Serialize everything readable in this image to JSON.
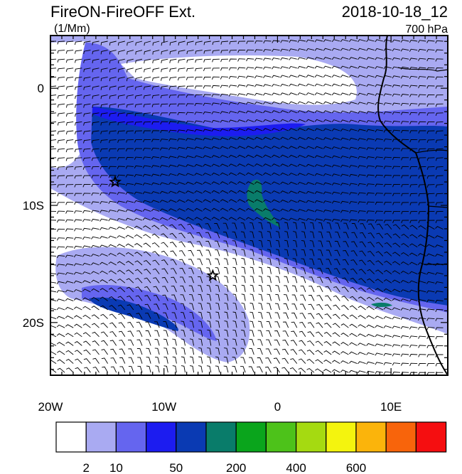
{
  "header": {
    "title": "FireON-FireOFF Ext.",
    "units": "(1/Mm)",
    "datetime": "2018-10-18_12",
    "level": "700 hPa"
  },
  "map": {
    "lon_range": [
      -20,
      15
    ],
    "lat_range": [
      -24.5,
      4.5
    ],
    "lon_ticks": [
      {
        "value": -20,
        "label": "20W"
      },
      {
        "value": -10,
        "label": "10W"
      },
      {
        "value": 0,
        "label": "0"
      },
      {
        "value": 10,
        "label": "10E"
      }
    ],
    "lat_ticks": [
      {
        "value": 0,
        "label": "0"
      },
      {
        "value": -10,
        "label": "10S"
      },
      {
        "value": -20,
        "label": "20S"
      }
    ],
    "markers": [
      {
        "name": "star-1",
        "lon": -14.3,
        "lat": -8.0
      },
      {
        "name": "star-2",
        "lon": -5.7,
        "lat": -16.0
      }
    ]
  },
  "colorbar": {
    "colors": [
      "#ffffff",
      "#a9aaf2",
      "#6565ef",
      "#1c1cf0",
      "#0a3ab3",
      "#097c6a",
      "#0aa51c",
      "#4dc21a",
      "#a5da11",
      "#f4f40e",
      "#fbb40b",
      "#f8640b",
      "#f50e10"
    ],
    "labels": [
      {
        "after_box": 1,
        "text": "2"
      },
      {
        "after_box": 2,
        "text": "10"
      },
      {
        "after_box": 4,
        "text": "50"
      },
      {
        "after_box": 6,
        "text": "200"
      },
      {
        "after_box": 8,
        "text": "400"
      },
      {
        "after_box": 10,
        "text": "600"
      }
    ]
  }
}
